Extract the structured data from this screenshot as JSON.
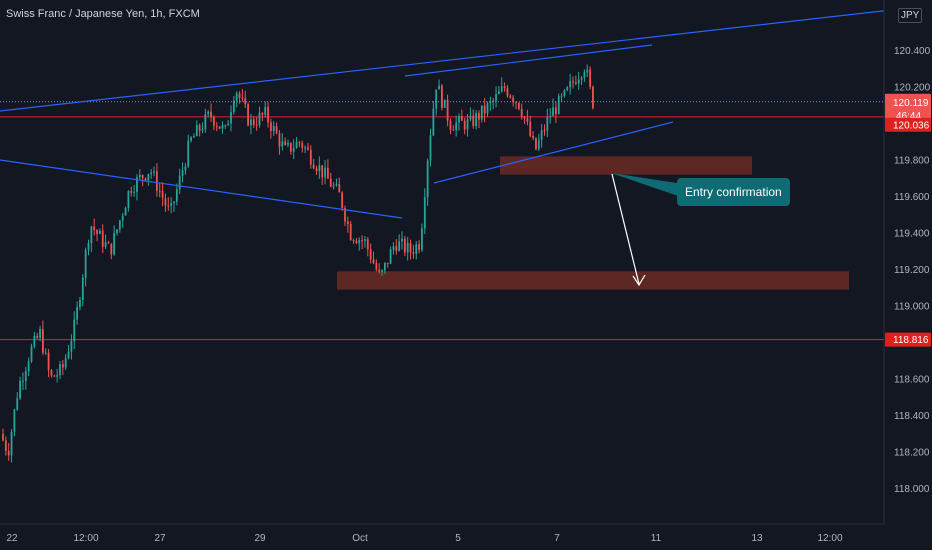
{
  "header": {
    "title": "Swiss Franc / Japanese Yen, 1h, FXCM",
    "currency_badge": "JPY"
  },
  "colors": {
    "background": "#131722",
    "up": "#26a69a",
    "down": "#ef5350",
    "trendline": "#2962ff",
    "level_line": "#e91e1e",
    "zone": "#6b2a24",
    "callout": "#0e6a73"
  },
  "chart_data": {
    "type": "candlestick",
    "symbol": "CHFJPY",
    "timeframe": "1h",
    "ylim": [
      117.8,
      120.55
    ],
    "y_ticks": [
      "118.000",
      "118.200",
      "118.400",
      "118.600",
      "119.000",
      "119.200",
      "119.400",
      "119.600",
      "119.800",
      "120.200",
      "120.400"
    ],
    "x_ticks": [
      "22",
      "12:00",
      "27",
      "29",
      "Oct",
      "5",
      "7",
      "11",
      "13",
      "12:00"
    ],
    "price_anchors": [
      {
        "t": 0,
        "p": 118.3
      },
      {
        "t": 8,
        "p": 118.2
      },
      {
        "t": 18,
        "p": 118.55
      },
      {
        "t": 30,
        "p": 118.75
      },
      {
        "t": 40,
        "p": 118.85
      },
      {
        "t": 50,
        "p": 118.6
      },
      {
        "t": 62,
        "p": 118.65
      },
      {
        "t": 75,
        "p": 118.9
      },
      {
        "t": 90,
        "p": 119.45
      },
      {
        "t": 110,
        "p": 119.3
      },
      {
        "t": 130,
        "p": 119.65
      },
      {
        "t": 150,
        "p": 119.75
      },
      {
        "t": 170,
        "p": 119.5
      },
      {
        "t": 190,
        "p": 119.9
      },
      {
        "t": 210,
        "p": 120.05
      },
      {
        "t": 225,
        "p": 119.95
      },
      {
        "t": 235,
        "p": 120.2
      },
      {
        "t": 250,
        "p": 120.0
      },
      {
        "t": 265,
        "p": 120.05
      },
      {
        "t": 285,
        "p": 119.85
      },
      {
        "t": 300,
        "p": 119.9
      },
      {
        "t": 320,
        "p": 119.75
      },
      {
        "t": 340,
        "p": 119.6
      },
      {
        "t": 350,
        "p": 119.4
      },
      {
        "t": 365,
        "p": 119.35
      },
      {
        "t": 380,
        "p": 119.15
      },
      {
        "t": 395,
        "p": 119.35
      },
      {
        "t": 410,
        "p": 119.3
      },
      {
        "t": 420,
        "p": 119.35
      },
      {
        "t": 428,
        "p": 119.85
      },
      {
        "t": 436,
        "p": 120.22
      },
      {
        "t": 450,
        "p": 120.0
      },
      {
        "t": 470,
        "p": 120.0
      },
      {
        "t": 490,
        "p": 120.1
      },
      {
        "t": 505,
        "p": 120.2
      },
      {
        "t": 520,
        "p": 120.1
      },
      {
        "t": 535,
        "p": 119.85
      },
      {
        "t": 550,
        "p": 120.05
      },
      {
        "t": 565,
        "p": 120.15
      },
      {
        "t": 575,
        "p": 120.25
      },
      {
        "t": 585,
        "p": 120.32
      },
      {
        "t": 592,
        "p": 120.119
      }
    ],
    "last_price": {
      "label": "120.119",
      "countdown": "46:44",
      "value": 120.119
    },
    "levels": [
      {
        "value": 120.036,
        "label": "120.036"
      },
      {
        "value": 118.816,
        "label": "118.816"
      }
    ],
    "zones": [
      {
        "y_top": 119.82,
        "y_bottom": 119.72
      },
      {
        "y_top": 119.19,
        "y_bottom": 119.09
      }
    ],
    "annotation": "Entry confirmation"
  }
}
